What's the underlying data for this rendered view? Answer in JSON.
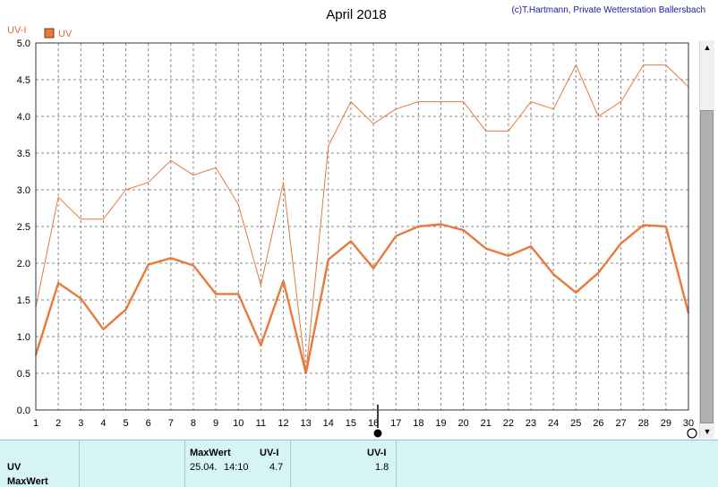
{
  "chart_data": {
    "type": "line",
    "title": "April 2018",
    "credit": "(c)T.Hartmann, Private Wetterstation Ballersbach",
    "ylabel": "UV-I",
    "legend": "UV",
    "ylim": [
      0,
      5
    ],
    "yticks": [
      "0.0",
      "0.5",
      "1.0",
      "1.5",
      "2.0",
      "2.5",
      "3.0",
      "3.5",
      "4.0",
      "4.5",
      "5.0"
    ],
    "x": [
      "1",
      "2",
      "3",
      "4",
      "5",
      "6",
      "7",
      "8",
      "9",
      "10",
      "11",
      "12",
      "13",
      "14",
      "15",
      "16",
      "17",
      "18",
      "19",
      "20",
      "21",
      "22",
      "23",
      "24",
      "25",
      "26",
      "27",
      "28",
      "29",
      "30"
    ],
    "series": [
      {
        "values": [
          0.75,
          1.73,
          1.52,
          1.1,
          1.37,
          1.98,
          2.07,
          1.97,
          1.58,
          1.58,
          0.88,
          1.76,
          0.5,
          2.05,
          2.3,
          1.93,
          2.37,
          2.5,
          2.53,
          2.45,
          2.2,
          2.1,
          2.23,
          1.85,
          1.6,
          1.87,
          2.27,
          2.52,
          2.5,
          1.32
        ],
        "color": "#e87a3c",
        "style": "thick"
      },
      {
        "values": [
          1.4,
          2.9,
          2.6,
          2.6,
          3.0,
          3.1,
          3.4,
          3.2,
          3.3,
          2.8,
          1.7,
          3.1,
          0.5,
          3.6,
          4.2,
          3.9,
          4.1,
          4.2,
          4.2,
          4.2,
          3.8,
          3.8,
          4.2,
          4.1,
          4.7,
          4.0,
          4.2,
          4.7,
          4.7,
          4.4
        ],
        "color": "#e87a3c",
        "style": "thin"
      }
    ]
  },
  "panel": {
    "row1_label": "UV",
    "row2_label": "MaxWert",
    "col_maxwert": "MaxWert",
    "col_uvi1": "UV-I",
    "col_uvi2": "UV-I",
    "max_date": "25.04.",
    "max_time": "14:10",
    "max_value": "4.7",
    "current_value": "1.8"
  }
}
